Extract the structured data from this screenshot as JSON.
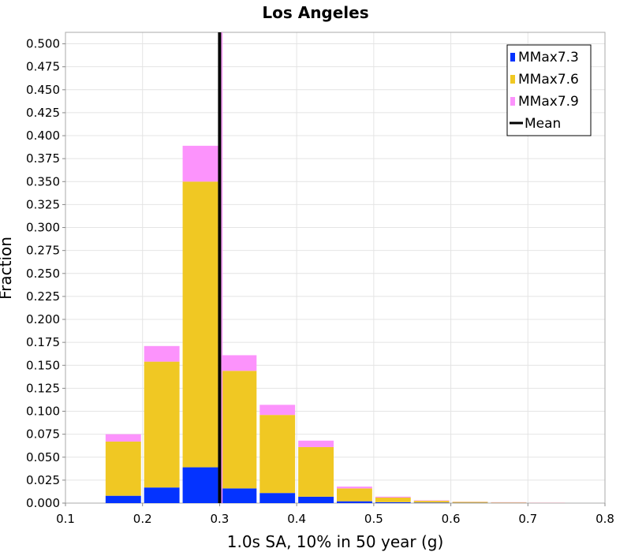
{
  "chart_data": {
    "type": "bar",
    "title": "Los Angeles",
    "xlabel": "1.0s SA, 10% in 50 year (g)",
    "ylabel": "Fraction",
    "xlim": [
      0.1,
      0.8
    ],
    "ylim": [
      0,
      0.5125
    ],
    "xticks": [
      "0.1",
      "0.2",
      "0.3",
      "0.4",
      "0.5",
      "0.6",
      "0.7",
      "0.8"
    ],
    "yticks": [
      "0.000",
      "0.025",
      "0.050",
      "0.075",
      "0.100",
      "0.125",
      "0.150",
      "0.175",
      "0.200",
      "0.225",
      "0.250",
      "0.275",
      "0.300",
      "0.325",
      "0.350",
      "0.375",
      "0.400",
      "0.425",
      "0.450",
      "0.475",
      "0.500"
    ],
    "bin_width": 0.05,
    "categories": [
      0.175,
      0.225,
      0.275,
      0.325,
      0.375,
      0.425,
      0.475,
      0.525,
      0.575,
      0.625,
      0.675,
      0.725,
      0.775
    ],
    "stacked": true,
    "series": [
      {
        "name": "MMax7.3",
        "color": "#0433ff",
        "values": [
          0.008,
          0.017,
          0.039,
          0.016,
          0.011,
          0.007,
          0.002,
          0.001,
          0.0005,
          0.0003,
          0.0002,
          0.0001,
          0.0
        ]
      },
      {
        "name": "MMax7.6",
        "color": "#f0c823",
        "values": [
          0.059,
          0.137,
          0.311,
          0.128,
          0.085,
          0.054,
          0.014,
          0.005,
          0.002,
          0.001,
          0.0005,
          0.0002,
          0.0
        ]
      },
      {
        "name": "MMax7.9",
        "color": "#fc93fc",
        "values": [
          0.008,
          0.017,
          0.039,
          0.017,
          0.011,
          0.007,
          0.002,
          0.001,
          0.0005,
          0.0002,
          0.0003,
          0.0002,
          0.0
        ]
      }
    ],
    "mean": {
      "name": "Mean",
      "x": 0.3,
      "color": "#000000"
    },
    "grid": true,
    "legend_position": "top-right"
  }
}
